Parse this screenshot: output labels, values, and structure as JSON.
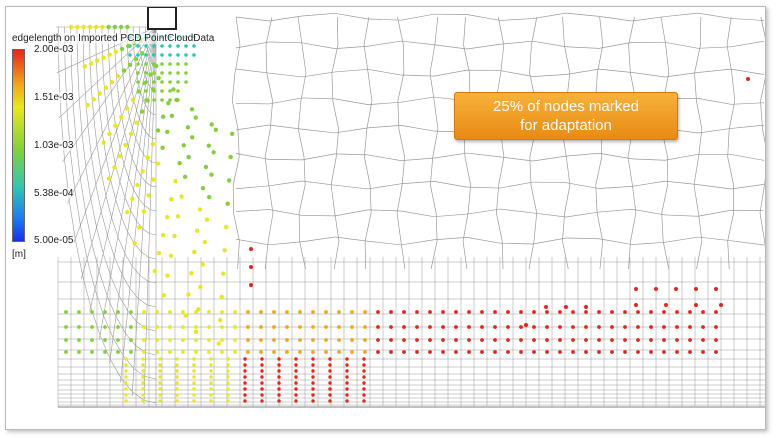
{
  "legend": {
    "title": "edgelength on Imported PCD PointCloudData",
    "ticks": [
      "2.00e-03",
      "1.51e-03",
      "1.03e-03",
      "5.38e-04",
      "5.00e-05"
    ],
    "unit": "[m]",
    "colors": [
      "#e8251a",
      "#f3a51b",
      "#e8e81a",
      "#82d13a",
      "#2ec6b2",
      "#1a7df0",
      "#1a2ef0"
    ]
  },
  "callout": {
    "line1": "25% of nodes marked",
    "line2": "for adaptation",
    "color": "#f0a020"
  },
  "mesh": {
    "line_color": "#9a9a9a",
    "marked_fraction": 0.25
  }
}
